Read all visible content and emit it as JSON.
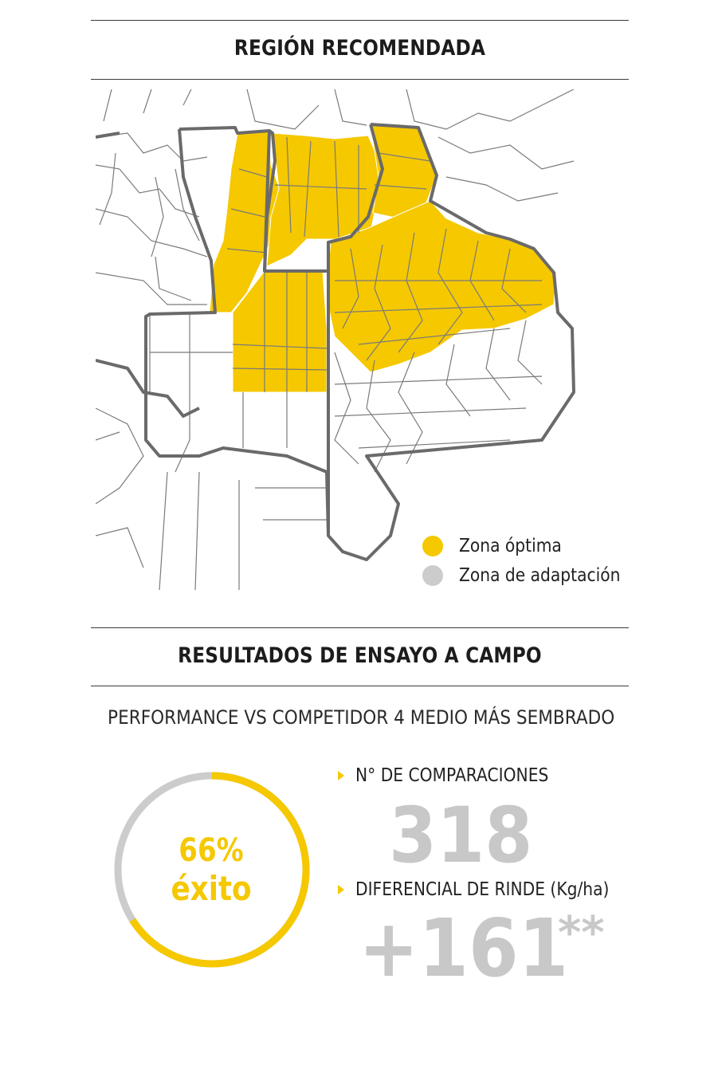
{
  "region": {
    "title": "REGIÓN RECOMENDADA",
    "legend": [
      {
        "label": "Zona óptima",
        "color": "#f5c800"
      },
      {
        "label": "Zona de adaptación",
        "color": "#cccccc"
      }
    ]
  },
  "results": {
    "title": "RESULTADOS DE ENSAYO A CAMPO",
    "subtitle": "PERFORMANCE VS COMPETIDOR 4 MEDIO MÁS SEMBRADO",
    "success": {
      "percent_label": "66%",
      "word": "éxito",
      "fraction": 0.66
    },
    "comparisons": {
      "label": "N° DE COMPARACIONES",
      "value": "318"
    },
    "yield_diff": {
      "label": "DIFERENCIAL DE RINDE (Kg/ha)",
      "value": "+161",
      "footnote": "**"
    }
  },
  "colors": {
    "accent": "#f5c800",
    "muted": "#cccccc",
    "number": "#c8c8c8",
    "border": "#6a6a6a"
  }
}
